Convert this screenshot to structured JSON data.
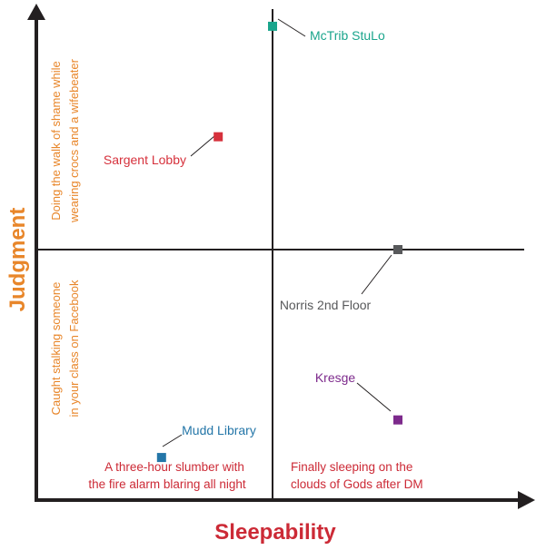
{
  "chart_data": {
    "type": "scatter",
    "title": "",
    "xlabel": "Sleepability",
    "ylabel": "Judgment",
    "xlim": [
      -10,
      10
    ],
    "ylim": [
      -10,
      10
    ],
    "grid": false,
    "axis_color": "#231f20",
    "ylabel_color": "#e8862a",
    "xlabel_color": "#cc2a36",
    "annotations": {
      "top_left": [
        "Doing the walk of shame while",
        "wearing crocs and a wifebeater"
      ],
      "bottom_left": [
        "Caught stalking someone",
        "in your class on Facebook"
      ],
      "bottom_left_x": [
        "A three-hour slumber with",
        "the fire alarm blaring all night"
      ],
      "bottom_right_x": [
        "Finally sleeping on the",
        "clouds of Gods after DM"
      ],
      "left_color": "#e8862a",
      "bottom_color": "#cc2a36"
    },
    "points": [
      {
        "label": "McTrib StuLo",
        "x": 0.0,
        "y": 9.5,
        "color": "#1aa58c"
      },
      {
        "label": "Sargent Lobby",
        "x": -2.3,
        "y": 4.8,
        "color": "#d6313c"
      },
      {
        "label": "Norris 2nd Floor",
        "x": 5.0,
        "y": 0.0,
        "color": "#58595b"
      },
      {
        "label": "Kresge",
        "x": 5.0,
        "y": -6.8,
        "color": "#7d2a8c"
      },
      {
        "label": "Mudd Library",
        "x": -4.7,
        "y": -8.3,
        "color": "#2476a8"
      }
    ]
  }
}
